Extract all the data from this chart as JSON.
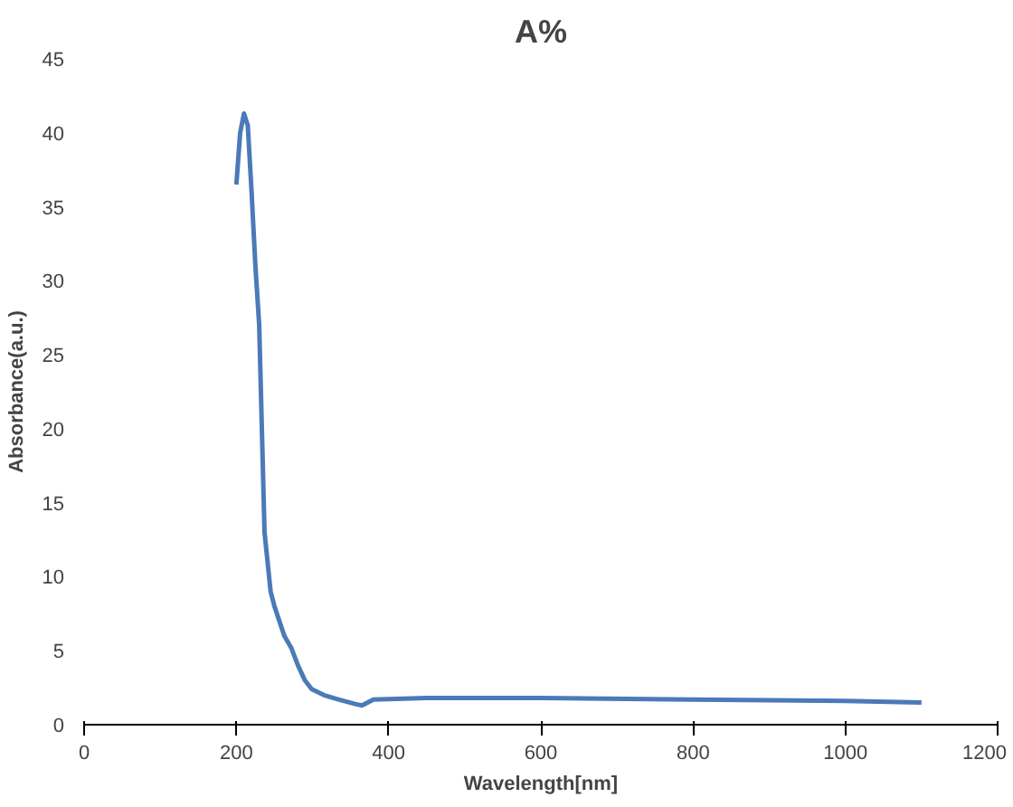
{
  "chart_data": {
    "type": "line",
    "title": "A%",
    "xlabel": "Wavelength[nm]",
    "ylabel": "Absorbance(a.u.)",
    "x": [
      200,
      205,
      210,
      215,
      220,
      225,
      230,
      237,
      245,
      250,
      263,
      272,
      281,
      290,
      299,
      315,
      334,
      356,
      365,
      380,
      450,
      600,
      800,
      1000,
      1100
    ],
    "series": [
      {
        "color": "#4a7ab8",
        "values": [
          36.5,
          40,
          41.3,
          40.5,
          36,
          31,
          27,
          13,
          9,
          8,
          6,
          5.2,
          4,
          3,
          2.4,
          2,
          1.7,
          1.4,
          1.3,
          1.7,
          1.8,
          1.8,
          1.7,
          1.6,
          1.5
        ]
      }
    ],
    "xlim": [
      0,
      1200
    ],
    "xticks": [
      0,
      200,
      400,
      600,
      800,
      1000,
      1200
    ],
    "ylim": [
      0,
      45
    ],
    "yticks": [
      0,
      5,
      10,
      15,
      20,
      25,
      30,
      35,
      40,
      45
    ],
    "grid": false
  }
}
